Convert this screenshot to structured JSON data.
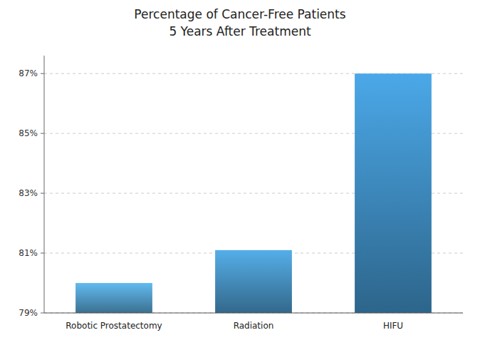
{
  "chart_data": {
    "type": "bar",
    "title": "Percentage of Cancer-Free Patients\n5 Years After Treatment",
    "categories": [
      "Robotic Prostatectomy",
      "Radiation",
      "HIFU"
    ],
    "values": [
      80.0,
      81.1,
      87.0
    ],
    "colors": [
      "#62baf0",
      "#55aee8",
      "#4ba8e8"
    ],
    "ylim": [
      79,
      87.6
    ],
    "yticks": [
      {
        "value": 79,
        "label": "79%"
      },
      {
        "value": 81,
        "label": "81%"
      },
      {
        "value": 83,
        "label": "83%"
      },
      {
        "value": 85,
        "label": "85%"
      },
      {
        "value": 87,
        "label": "87%"
      }
    ],
    "grid": true
  }
}
